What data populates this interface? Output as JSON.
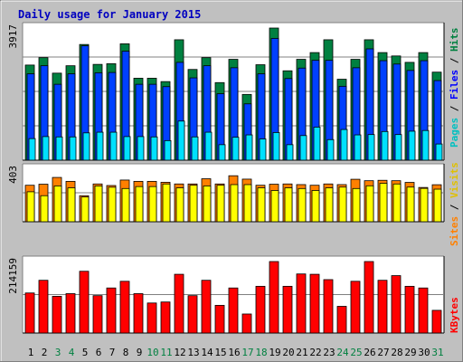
{
  "chart_data": {
    "type": "bar",
    "title": "Daily usage for January 2015",
    "categories": [
      "1",
      "2",
      "3",
      "4",
      "5",
      "6",
      "7",
      "8",
      "9",
      "10",
      "11",
      "12",
      "13",
      "14",
      "15",
      "16",
      "17",
      "18",
      "19",
      "20",
      "21",
      "22",
      "23",
      "24",
      "25",
      "26",
      "27",
      "28",
      "29",
      "30",
      "31"
    ],
    "weekend_days": [
      "3",
      "4",
      "10",
      "11",
      "17",
      "18",
      "24",
      "25",
      "31"
    ],
    "panels": [
      {
        "name": "hits-files-pages",
        "ymax_label": "3917",
        "ymax": 3917,
        "side_labels": [
          "Pages",
          "Files",
          "Hits"
        ],
        "series": [
          {
            "name": "Hits",
            "color": "#008040",
            "values": [
              2820,
              3040,
              2580,
              2800,
              3430,
              2840,
              2860,
              3450,
              2430,
              2430,
              2330,
              3570,
              2690,
              3040,
              2300,
              2990,
              1950,
              2830,
              3917,
              2650,
              2990,
              3190,
              3570,
              2400,
              2990,
              3570,
              3190,
              3090,
              2900,
              3190,
              2610
            ]
          },
          {
            "name": "Files",
            "color": "#0040ff",
            "values": [
              2560,
              2800,
              2250,
              2560,
              3390,
              2590,
              2600,
              3230,
              2250,
              2250,
              2180,
              2900,
              2440,
              2800,
              1970,
              2740,
              1670,
              2560,
              3610,
              2420,
              2730,
              2960,
              2960,
              2190,
              2740,
              3300,
              2950,
              2850,
              2660,
              2950,
              2360
            ]
          },
          {
            "name": "Pages",
            "color": "#00e0ff",
            "values": [
              640,
              700,
              690,
              690,
              810,
              830,
              830,
              700,
              700,
              690,
              580,
              1160,
              690,
              830,
              460,
              680,
              750,
              630,
              820,
              460,
              730,
              980,
              610,
              910,
              750,
              760,
              850,
              760,
              860,
              880,
              480
            ]
          }
        ]
      },
      {
        "name": "visits-sites",
        "ymax_label": "403",
        "ymax": 403,
        "side_labels": [
          "Sites",
          "Visits"
        ],
        "series": [
          {
            "name": "Visits",
            "color": "#ff8000",
            "values": [
              280,
              288,
              340,
              310,
              200,
              290,
              278,
              320,
              310,
              310,
              303,
              290,
              290,
              330,
              290,
              353,
              327,
              280,
              288,
              290,
              285,
              280,
              290,
              285,
              326,
              315,
              318,
              315,
              302,
              263,
              284
            ]
          },
          {
            "name": "Sites",
            "color": "#ffff00",
            "values": [
              230,
              200,
              275,
              260,
              190,
              275,
              265,
              255,
              270,
              270,
              290,
              260,
              280,
              275,
              280,
              285,
              285,
              260,
              240,
              260,
              255,
              240,
              260,
              266,
              255,
              276,
              295,
              290,
              266,
              256,
              250
            ]
          }
        ]
      },
      {
        "name": "kbytes",
        "ymax_label": "214159",
        "ymax": 214159,
        "side_labels": [
          "KBytes"
        ],
        "series": [
          {
            "name": "KBytes",
            "color": "#ff0000",
            "values": [
              120000,
              158000,
              110000,
              118000,
              185000,
              112000,
              135000,
              155000,
              118000,
              90000,
              93000,
              176000,
              112000,
              158000,
              83000,
              135000,
              57000,
              140000,
              214159,
              140000,
              177000,
              176000,
              160000,
              80000,
              155000,
              214159,
              158000,
              172000,
              140000,
              135000,
              68000
            ]
          }
        ]
      }
    ]
  }
}
